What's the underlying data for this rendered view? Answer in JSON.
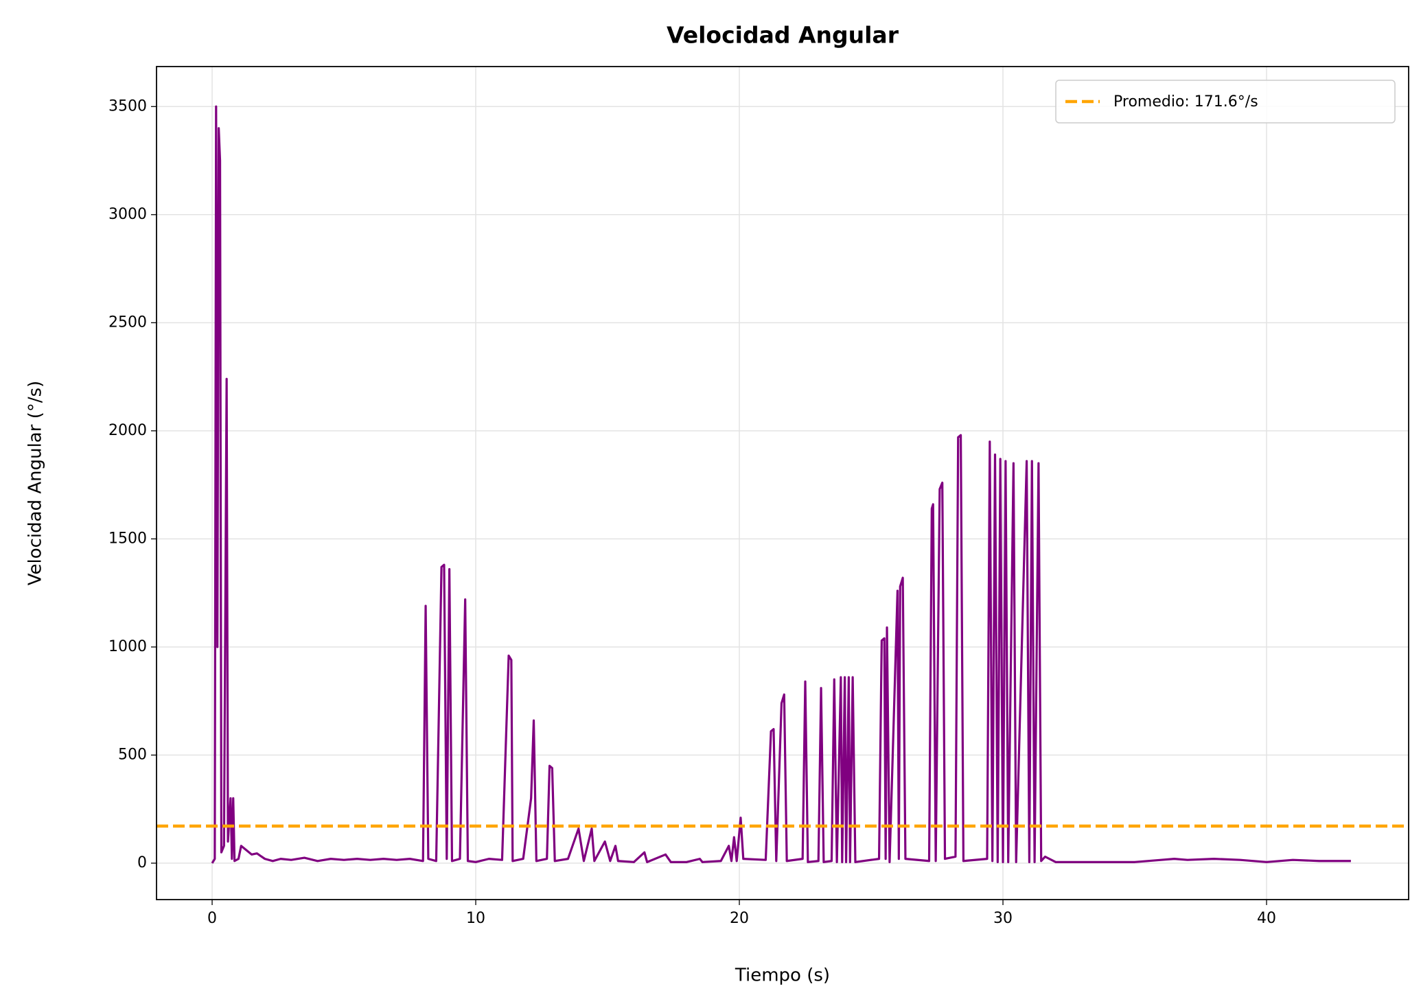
{
  "chart_data": {
    "type": "line",
    "title": "Velocidad Angular",
    "xlabel": "Tiempo (s)",
    "ylabel": "Velocidad Angular (°/s)",
    "x": [
      0.0,
      0.1,
      0.15,
      0.2,
      0.25,
      0.3,
      0.35,
      0.45,
      0.55,
      0.6,
      0.7,
      0.75,
      0.8,
      0.85,
      1.0,
      1.1,
      1.3,
      1.5,
      1.7,
      2.0,
      2.3,
      2.6,
      3.0,
      3.5,
      4.0,
      4.5,
      5.0,
      5.5,
      6.0,
      6.5,
      7.0,
      7.5,
      8.0,
      8.1,
      8.2,
      8.5,
      8.7,
      8.8,
      8.9,
      9.0,
      9.1,
      9.4,
      9.6,
      9.7,
      10.0,
      10.5,
      11.0,
      11.25,
      11.35,
      11.4,
      11.8,
      12.1,
      12.2,
      12.3,
      12.7,
      12.8,
      12.9,
      13.0,
      13.5,
      13.9,
      14.1,
      14.4,
      14.5,
      14.9,
      15.1,
      15.3,
      15.4,
      16.0,
      16.4,
      16.5,
      17.2,
      17.4,
      18.0,
      18.5,
      18.6,
      19.3,
      19.6,
      19.7,
      19.8,
      19.9,
      20.05,
      20.15,
      21.0,
      21.2,
      21.3,
      21.4,
      21.6,
      21.7,
      21.8,
      22.4,
      22.5,
      22.6,
      23.0,
      23.1,
      23.2,
      23.5,
      23.6,
      23.7,
      23.85,
      23.9,
      24.0,
      24.05,
      24.15,
      24.2,
      24.3,
      24.4,
      25.3,
      25.4,
      25.5,
      25.55,
      25.6,
      25.7,
      26.0,
      26.05,
      26.1,
      26.2,
      26.3,
      27.2,
      27.3,
      27.35,
      27.45,
      27.6,
      27.7,
      27.8,
      28.2,
      28.3,
      28.4,
      28.5,
      29.4,
      29.5,
      29.6,
      29.7,
      29.8,
      29.9,
      30.0,
      30.1,
      30.2,
      30.4,
      30.5,
      30.9,
      31.0,
      31.1,
      31.2,
      31.35,
      31.45,
      31.6,
      32.0,
      33.0,
      34.0,
      35.0,
      36.0,
      36.5,
      37.0,
      38.0,
      39.0,
      40.0,
      41.0,
      42.0,
      43.2
    ],
    "series": [
      {
        "name": "Velocidad",
        "color": "purple",
        "values": [
          0,
          20,
          3500,
          1000,
          3400,
          3250,
          50,
          80,
          2240,
          100,
          300,
          20,
          300,
          10,
          20,
          80,
          60,
          40,
          45,
          20,
          10,
          20,
          15,
          25,
          10,
          20,
          15,
          20,
          15,
          20,
          15,
          20,
          10,
          1190,
          20,
          10,
          1370,
          1380,
          20,
          1360,
          10,
          20,
          1220,
          10,
          5,
          20,
          15,
          960,
          940,
          10,
          20,
          300,
          660,
          10,
          20,
          450,
          440,
          10,
          20,
          160,
          10,
          160,
          10,
          100,
          10,
          80,
          10,
          5,
          50,
          5,
          40,
          5,
          5,
          20,
          5,
          10,
          80,
          10,
          120,
          10,
          210,
          20,
          15,
          610,
          620,
          10,
          740,
          780,
          10,
          20,
          840,
          5,
          10,
          810,
          5,
          10,
          850,
          5,
          860,
          5,
          860,
          5,
          860,
          5,
          860,
          5,
          20,
          1030,
          1040,
          20,
          1090,
          5,
          1260,
          20,
          1280,
          1320,
          20,
          10,
          1640,
          1660,
          10,
          1730,
          1760,
          20,
          30,
          1970,
          1980,
          10,
          20,
          1950,
          10,
          1890,
          5,
          1870,
          5,
          1860,
          5,
          1850,
          5,
          1860,
          5,
          1860,
          5,
          1850,
          10,
          30,
          5,
          5,
          5,
          5,
          15,
          20,
          15,
          20,
          15,
          5,
          15,
          10,
          10
        ]
      }
    ],
    "mean_line": {
      "value": 171.6,
      "label": "Promedio: 171.6°/s",
      "color": "orange"
    },
    "xlim": [
      -2.11,
      45.39
    ],
    "ylim": [
      -168.5,
      3685
    ],
    "xticks": [
      0,
      10,
      20,
      30,
      40
    ],
    "yticks": [
      0,
      500,
      1000,
      1500,
      2000,
      2500,
      3000,
      3500
    ],
    "grid": true,
    "legend_position": "upper right"
  }
}
